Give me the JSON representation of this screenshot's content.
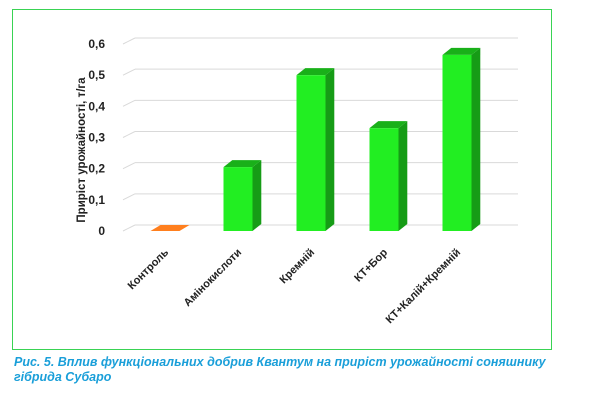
{
  "chart_data": {
    "type": "bar",
    "categories": [
      "Контроль",
      "Амінокислоти",
      "Кремній",
      "КТ+Бор",
      "КТ+Калій+Кремній"
    ],
    "values": [
      0.005,
      0.205,
      0.5,
      0.33,
      0.565
    ],
    "ylabel": "Приріст урожайності, т/га",
    "ylim": [
      0,
      0.6
    ],
    "yticks": [
      "0",
      "0,1",
      "0,2",
      "0,3",
      "0,4",
      "0,5",
      "0,6"
    ],
    "grid": true,
    "legend": "none",
    "colors": {
      "bars": "#22ee22",
      "bar_side": "#169c16",
      "bar_top": "#19b019",
      "first_bar": "#ff7f1e",
      "grid": "#d9d9d9",
      "frame": "#39d353"
    }
  },
  "caption": {
    "label": "Рис. 5.",
    "text": "Вплив функціональних добрив Квантум  на приріст урожайності соняшнику гібрида Субаро"
  }
}
